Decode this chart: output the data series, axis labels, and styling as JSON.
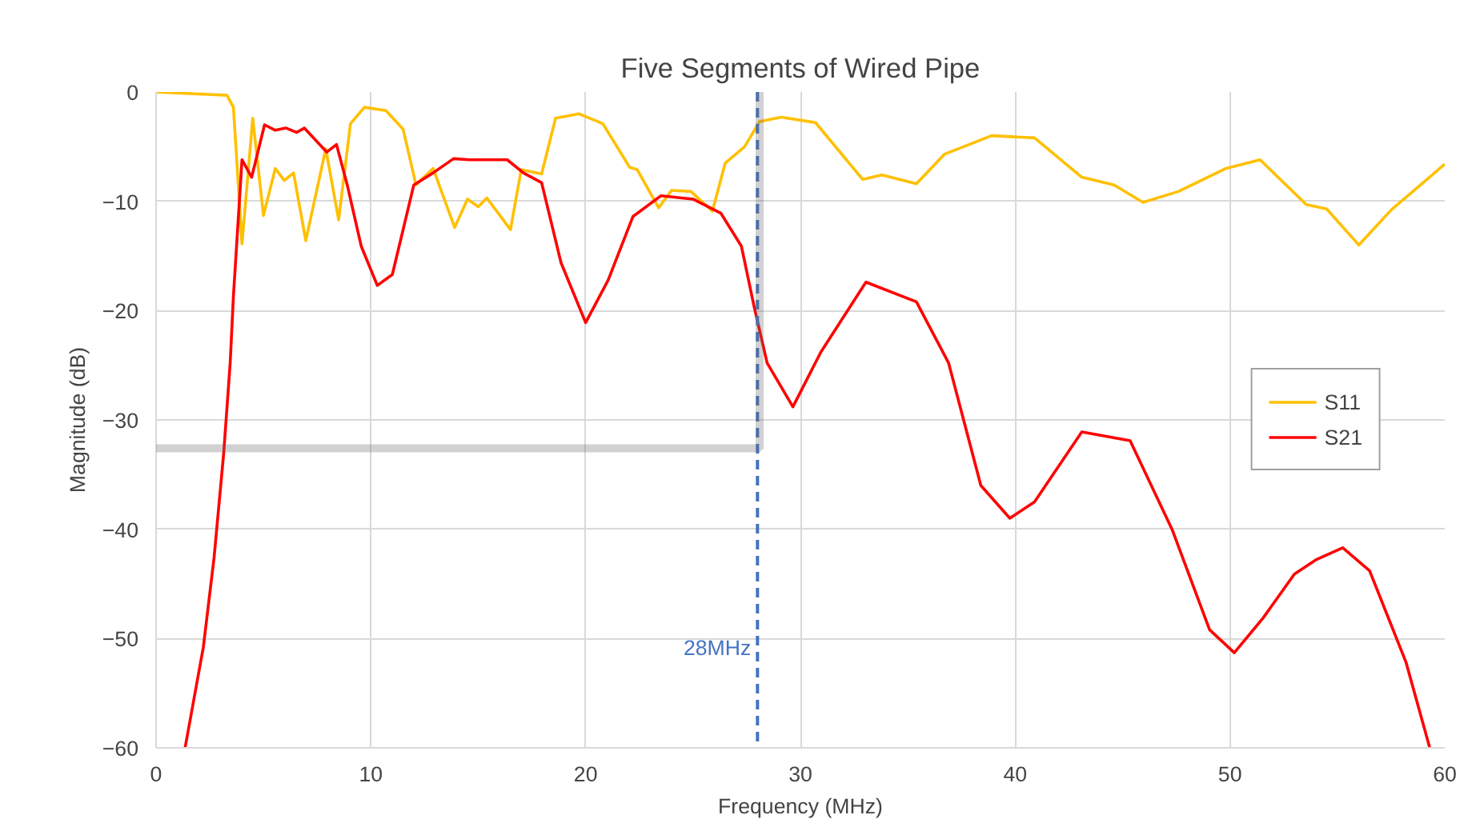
{
  "chart_data": {
    "type": "line",
    "title": "Five Segments of Wired Pipe",
    "xlabel": "Frequency (MHz)",
    "ylabel": "Magnitude (dB)",
    "xlim": [
      0,
      60
    ],
    "ylim": [
      -60,
      0
    ],
    "xticks": [
      0,
      10,
      20,
      30,
      40,
      50,
      60
    ],
    "yticks": [
      -60,
      -50,
      -40,
      -30,
      -20,
      -10,
      0
    ],
    "grid": true,
    "legend": "right",
    "line_style": "solid",
    "marker": "none",
    "ref_lines": [
      {
        "axis": "x",
        "value": 28,
        "label": "28MHz",
        "color": "#4472c4",
        "line_style": "dashed"
      }
    ],
    "series": [
      {
        "name": "S11",
        "color": "#ffc000",
        "x": [
          0,
          3.3,
          3.6,
          4.0,
          4.5,
          5.0,
          5.55,
          5.97,
          6.4,
          6.97,
          7.9,
          8.5,
          9.05,
          9.7,
          10.7,
          11.5,
          12.1,
          12.9,
          13.9,
          14.5,
          15.0,
          15.4,
          16.5,
          17.0,
          17.95,
          18.6,
          19.7,
          20.8,
          22.05,
          22.4,
          23.4,
          24.0,
          24.9,
          25.9,
          26.5,
          27.4,
          28.1,
          29.1,
          30.7,
          32.9,
          33.8,
          35.4,
          36.7,
          38.9,
          40.9,
          43.1,
          44.6,
          45.95,
          47.6,
          49.8,
          51.4,
          53.55,
          54.5,
          56.0,
          57.5,
          60
        ],
        "values": [
          0,
          -0.3,
          -1.4,
          -13.9,
          -2.4,
          -11.3,
          -7.0,
          -8.1,
          -7.4,
          -13.6,
          -5.2,
          -11.7,
          -2.9,
          -1.4,
          -1.7,
          -3.4,
          -8.5,
          -7.0,
          -12.4,
          -9.8,
          -10.5,
          -9.7,
          -12.6,
          -7.1,
          -7.5,
          -2.4,
          -2.0,
          -2.9,
          -6.9,
          -7.1,
          -10.6,
          -9.0,
          -9.1,
          -10.9,
          -6.5,
          -5.0,
          -2.7,
          -2.3,
          -2.8,
          -8.0,
          -7.6,
          -8.4,
          -5.7,
          -4.0,
          -4.2,
          -7.8,
          -8.5,
          -10.1,
          -9.1,
          -7.0,
          -6.2,
          -10.3,
          -10.7,
          -14.0,
          -10.8,
          -6.6
        ]
      },
      {
        "name": "S21",
        "color": "#ff0000",
        "x": [
          1.35,
          2.2,
          2.7,
          3.15,
          3.45,
          3.6,
          4.0,
          4.45,
          5.05,
          5.55,
          6.05,
          6.55,
          6.9,
          7.95,
          8.4,
          8.9,
          9.55,
          10.3,
          11.0,
          12.0,
          12.9,
          13.85,
          14.6,
          16.35,
          17.1,
          17.95,
          18.85,
          20.0,
          21.05,
          22.2,
          23.5,
          25.0,
          26.3,
          27.25,
          27.85,
          28.45,
          29.65,
          30.95,
          33.05,
          35.4,
          36.9,
          38.4,
          39.75,
          40.9,
          43.1,
          45.35,
          47.3,
          49.05,
          50.2,
          51.55,
          53.0,
          54.0,
          55.25,
          56.5,
          58.2,
          59.3
        ],
        "values": [
          -60,
          -50.8,
          -42.6,
          -33,
          -24.8,
          -18.7,
          -6.2,
          -7.8,
          -3.0,
          -3.5,
          -3.3,
          -3.7,
          -3.3,
          -5.5,
          -4.8,
          -8.5,
          -14.1,
          -17.7,
          -16.7,
          -8.5,
          -7.4,
          -6.1,
          -6.2,
          -6.2,
          -7.4,
          -8.3,
          -15.6,
          -21.1,
          -17.2,
          -11.4,
          -9.5,
          -9.8,
          -11.1,
          -14.1,
          -19.7,
          -24.8,
          -28.8,
          -23.8,
          -17.4,
          -19.2,
          -24.8,
          -36.0,
          -39.0,
          -37.5,
          -31.1,
          -31.9,
          -40.0,
          -49.2,
          -51.3,
          -48.1,
          -44.1,
          -42.8,
          -41.7,
          -43.8,
          -52.2,
          -60
        ]
      }
    ]
  }
}
